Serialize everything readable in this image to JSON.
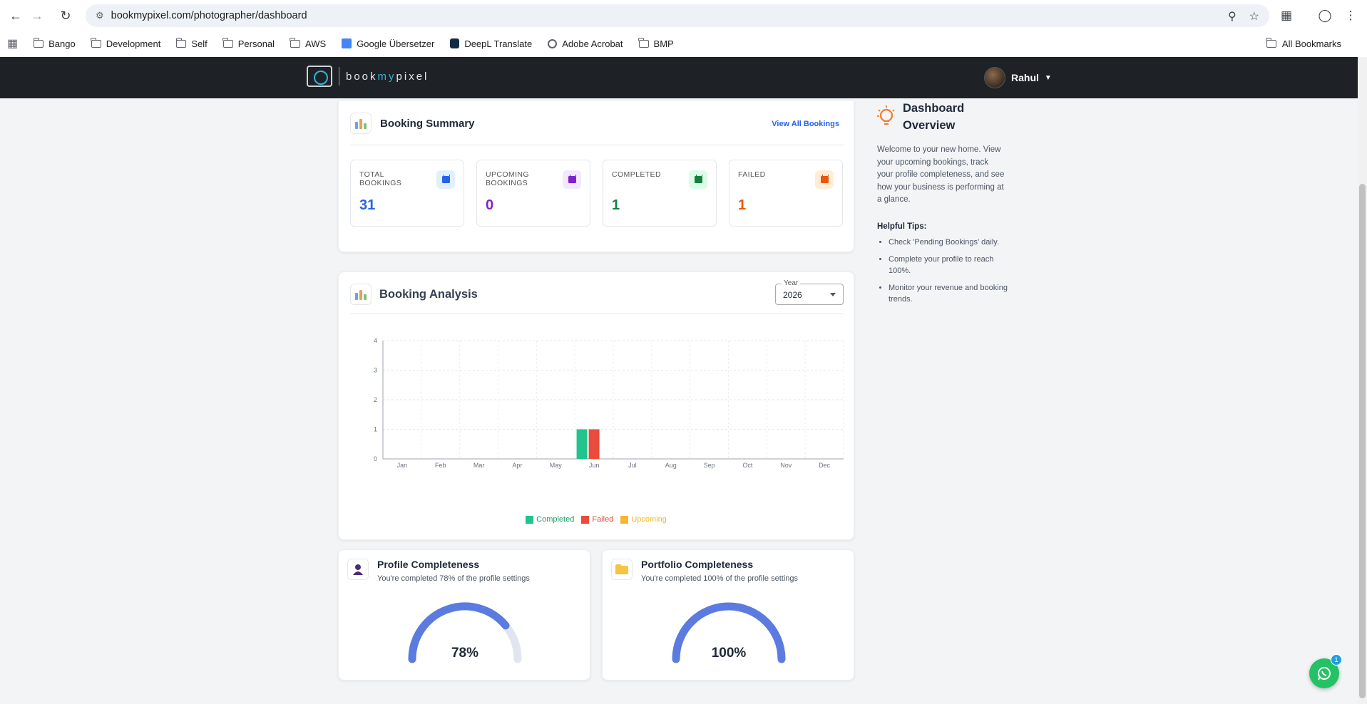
{
  "browser": {
    "url": "bookmypixel.com/photographer/dashboard",
    "bookmarks": [
      "Bango",
      "Development",
      "Self",
      "Personal",
      "AWS",
      "Google Übersetzer",
      "DeepL Translate",
      "Adobe Acrobat",
      "BMP"
    ],
    "all_bookmarks": "All Bookmarks"
  },
  "header": {
    "logo_prefix": "book",
    "logo_my": "my",
    "logo_suffix": "pixel",
    "user_name": "Rahul"
  },
  "summary": {
    "title": "Booking Summary",
    "view_all": "View All Bookings",
    "stats": [
      {
        "label": "TOTAL BOOKINGS",
        "value": "31",
        "color": "#2563eb",
        "bg": "#e0f0fe"
      },
      {
        "label": "UPCOMING BOOKINGS",
        "value": "0",
        "color": "#7e22ce",
        "bg": "#f3e8ff"
      },
      {
        "label": "COMPLETED",
        "value": "1",
        "color": "#15803d",
        "bg": "#dcfce7"
      },
      {
        "label": "FAILED",
        "value": "1",
        "color": "#ea580c",
        "bg": "#ffedd5"
      }
    ]
  },
  "analysis": {
    "title": "Booking Analysis",
    "year_label": "Year",
    "year_value": "2026"
  },
  "chart_data": {
    "type": "bar",
    "categories": [
      "Jan",
      "Feb",
      "Mar",
      "Apr",
      "May",
      "Jun",
      "Jul",
      "Aug",
      "Sep",
      "Oct",
      "Nov",
      "Dec"
    ],
    "series": [
      {
        "name": "Completed",
        "color": "#22c38e",
        "values": [
          0,
          0,
          0,
          0,
          0,
          1,
          0,
          0,
          0,
          0,
          0,
          0
        ]
      },
      {
        "name": "Failed",
        "color": "#e74c3c",
        "values": [
          0,
          0,
          0,
          0,
          0,
          1,
          0,
          0,
          0,
          0,
          0,
          0
        ]
      },
      {
        "name": "Upcoming",
        "color": "#f5b731",
        "values": [
          0,
          0,
          0,
          0,
          0,
          0,
          0,
          0,
          0,
          0,
          0,
          0
        ]
      }
    ],
    "y_ticks": [
      "0",
      "1",
      "2",
      "3",
      "4"
    ],
    "ylim": [
      0,
      4
    ],
    "grid": true,
    "legend": "bottom"
  },
  "profile": {
    "title": "Profile Completeness",
    "subtitle": "You're completed 78% of the profile settings",
    "percent": 78,
    "percent_label": "78%"
  },
  "portfolio": {
    "title": "Portfolio Completeness",
    "subtitle": "You're completed 100% of the profile settings",
    "percent": 100,
    "percent_label": "100%"
  },
  "overview": {
    "title": "Dashboard Overview",
    "description": "Welcome to your new home. View your upcoming bookings, track your profile completeness, and see how your business is performing at a glance.",
    "tips_title": "Helpful Tips:",
    "tips": [
      "Check 'Pending Bookings' daily.",
      "Complete your profile to reach 100%.",
      "Monitor your revenue and booking trends."
    ]
  },
  "chat_badge": "1"
}
